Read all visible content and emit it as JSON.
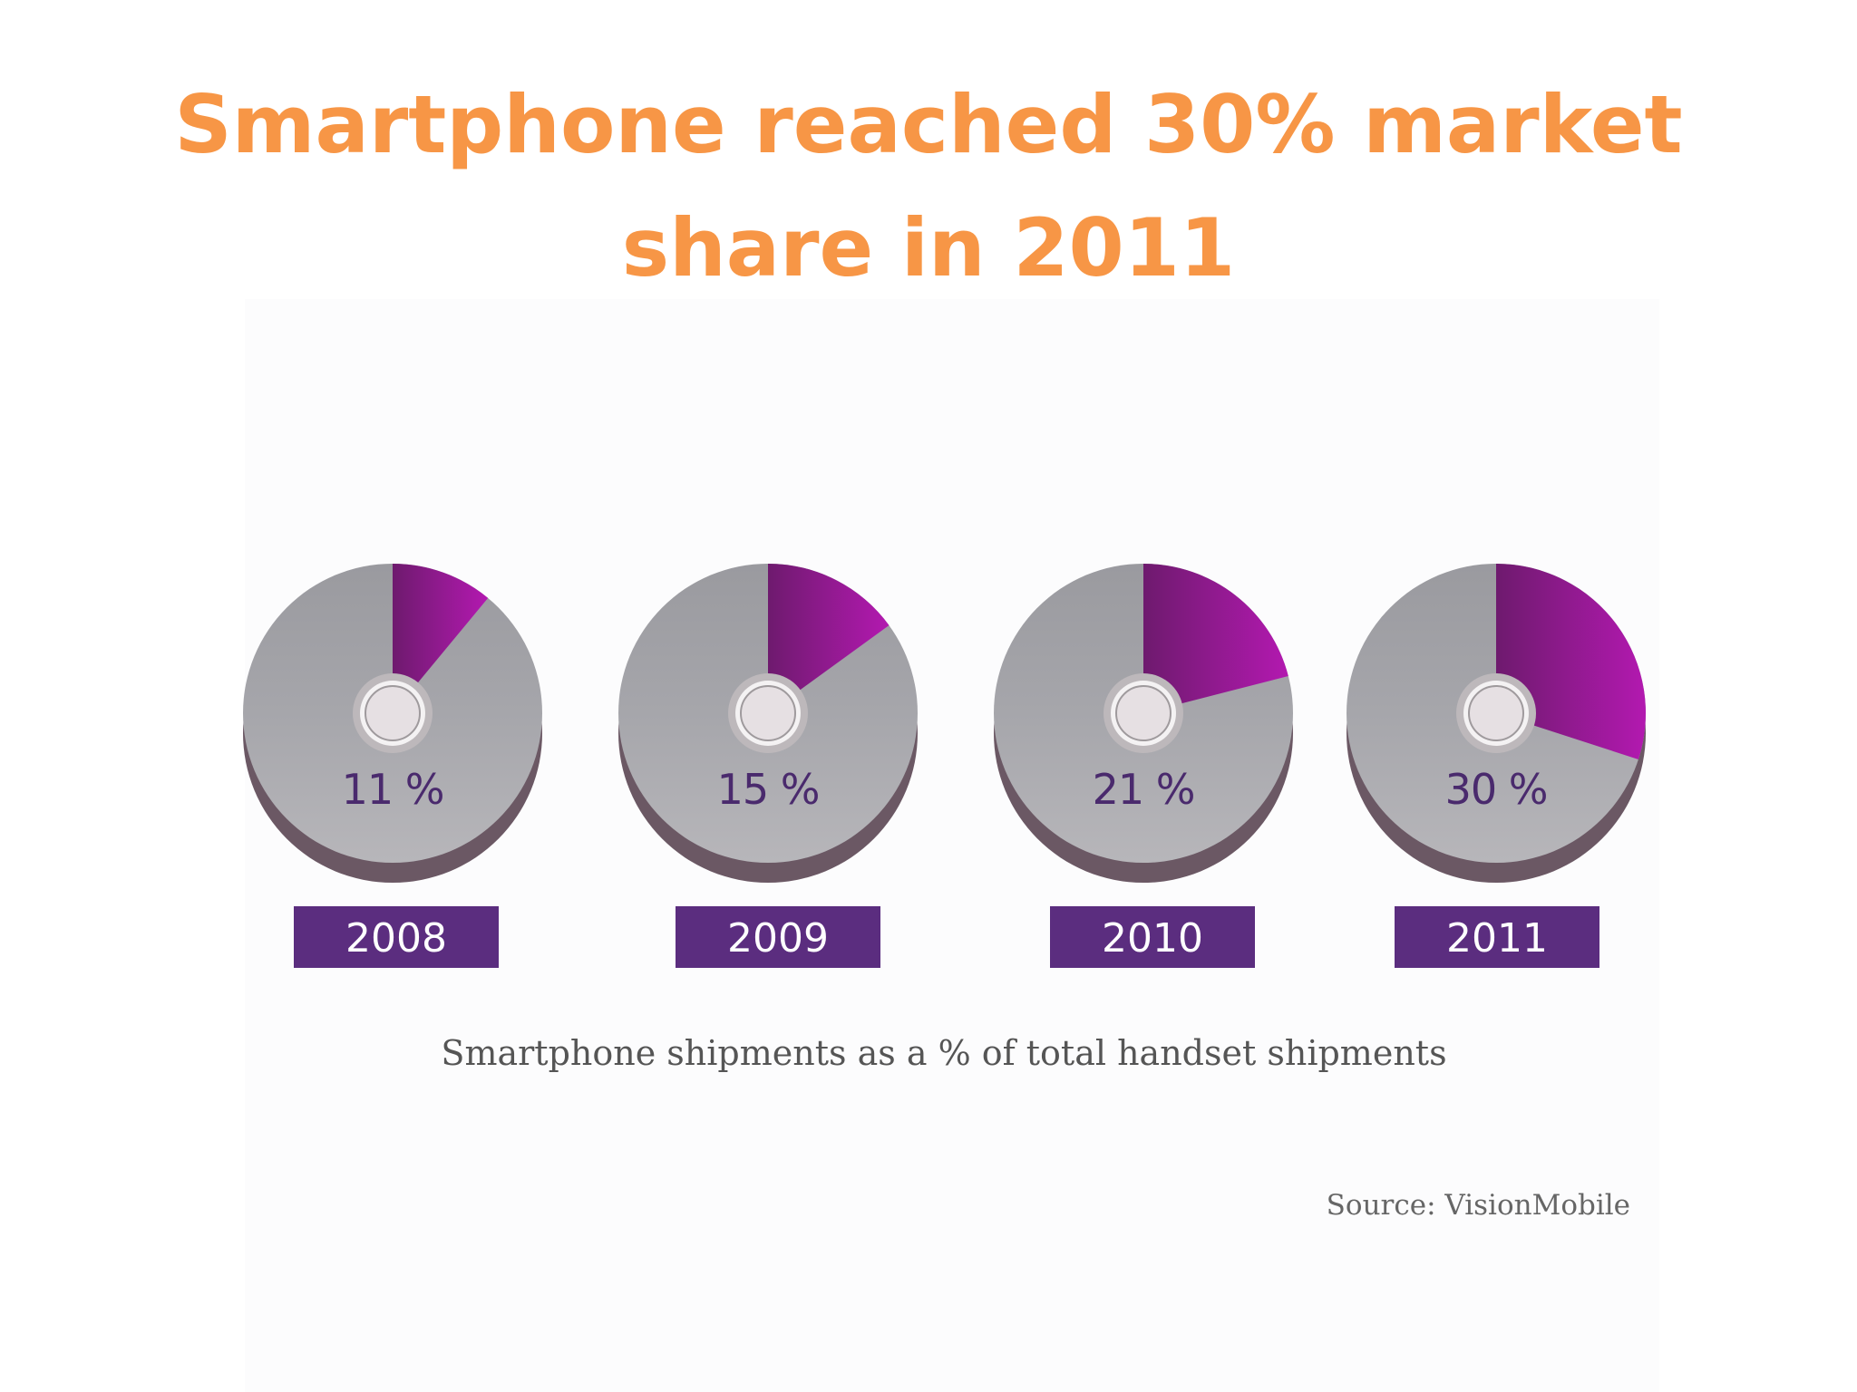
{
  "title": {
    "line1": "Smartphone reached 30% market",
    "line2": "share in 2011"
  },
  "chart_data": {
    "type": "pie",
    "categories": [
      "2008",
      "2009",
      "2010",
      "2011"
    ],
    "values": [
      11,
      15,
      21,
      30
    ],
    "labels": [
      "11 %",
      "15 %",
      "21 %",
      "30 %"
    ],
    "caption": "Smartphone shipments as a % of total handset shipments",
    "source": "Source: VisionMobile",
    "colors": {
      "smartphone_slice": "#9b1aa0",
      "remainder": "#a3a3a8",
      "pie_side": "#6b5864",
      "center_hub": "#e6e0e3",
      "year_badge": "#5b2d7f",
      "percent_text": "#4a2a6d"
    }
  }
}
